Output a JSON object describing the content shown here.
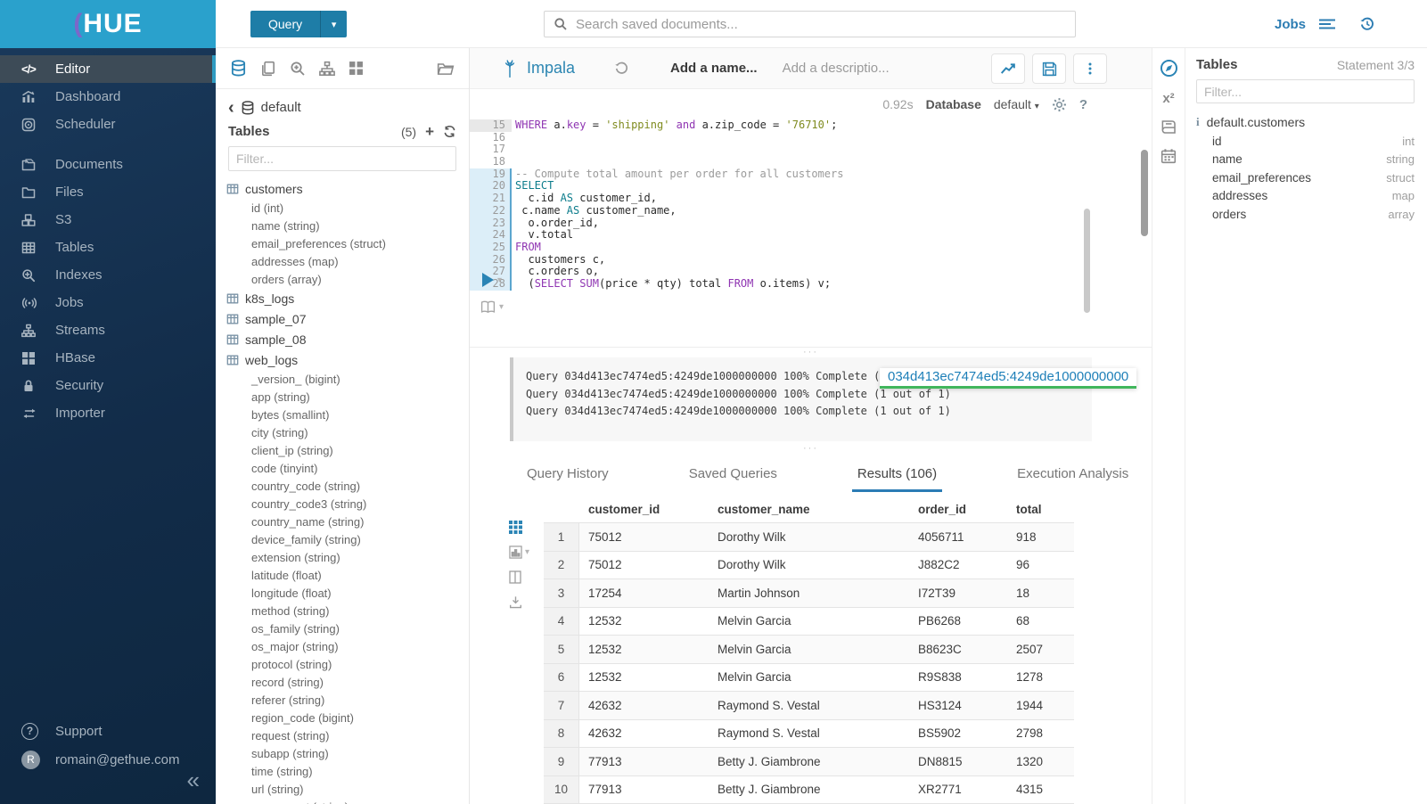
{
  "brand": {
    "name": "HUE"
  },
  "topbar": {
    "query_button": "Query",
    "search_placeholder": "Search saved documents...",
    "jobs_label": "Jobs"
  },
  "sidebar": {
    "items": [
      {
        "label": "Editor",
        "icon": "code",
        "active": true
      },
      {
        "label": "Dashboard",
        "icon": "dashboard"
      },
      {
        "label": "Scheduler",
        "icon": "scheduler"
      },
      {
        "label": "Documents",
        "icon": "documents",
        "gap": true
      },
      {
        "label": "Files",
        "icon": "folder"
      },
      {
        "label": "S3",
        "icon": "s3"
      },
      {
        "label": "Tables",
        "icon": "tables"
      },
      {
        "label": "Indexes",
        "icon": "search-plus"
      },
      {
        "label": "Jobs",
        "icon": "broadcast"
      },
      {
        "label": "Streams",
        "icon": "sitemap"
      },
      {
        "label": "HBase",
        "icon": "blocks"
      },
      {
        "label": "Security",
        "icon": "lock"
      },
      {
        "label": "Importer",
        "icon": "transfer"
      }
    ],
    "footer": [
      {
        "label": "Support",
        "icon": "help"
      },
      {
        "label": "romain@gethue.com",
        "icon": "avatar",
        "avatar_letter": "R"
      }
    ],
    "collapse_glyph": "«"
  },
  "left_assist": {
    "breadcrumb_back": "‹",
    "database": "default",
    "tables_title": "Tables",
    "tables_count": "(5)",
    "plus_glyph": "+",
    "filter_placeholder": "Filter...",
    "tables": [
      {
        "name": "customers",
        "columns": [
          "id (int)",
          "name (string)",
          "email_preferences (struct)",
          "addresses (map)",
          "orders (array)"
        ]
      },
      {
        "name": "k8s_logs",
        "columns": []
      },
      {
        "name": "sample_07",
        "columns": []
      },
      {
        "name": "sample_08",
        "columns": []
      },
      {
        "name": "web_logs",
        "columns": [
          "_version_ (bigint)",
          "app (string)",
          "bytes (smallint)",
          "city (string)",
          "client_ip (string)",
          "code (tinyint)",
          "country_code (string)",
          "country_code3 (string)",
          "country_name (string)",
          "device_family (string)",
          "extension (string)",
          "latitude (float)",
          "longitude (float)",
          "method (string)",
          "os_family (string)",
          "os_major (string)",
          "protocol (string)",
          "record (string)",
          "referer (string)",
          "region_code (bigint)",
          "request (string)",
          "subapp (string)",
          "time (string)",
          "url (string)",
          "user_agent (string)"
        ]
      }
    ]
  },
  "editor": {
    "engine": "Impala",
    "name_placeholder": "Add a name...",
    "description_placeholder": "Add a descriptio...",
    "execution_time": "0.92s",
    "database_label": "Database",
    "database_value": "default",
    "caret_glyph": "▾",
    "code_lines": [
      {
        "n": 15,
        "hl": "gray",
        "tokens": [
          [
            "kw",
            "WHERE"
          ],
          [
            "t",
            " a."
          ],
          [
            "kw",
            "key"
          ],
          [
            "t",
            " = "
          ],
          [
            "s",
            "'shipping'"
          ],
          [
            "t",
            " "
          ],
          [
            "kw",
            "and"
          ],
          [
            "t",
            " a.zip_code = "
          ],
          [
            "s",
            "'76710'"
          ],
          [
            "t",
            ";"
          ]
        ]
      },
      {
        "n": 16,
        "hl": null,
        "tokens": []
      },
      {
        "n": 17,
        "hl": null,
        "tokens": []
      },
      {
        "n": 18,
        "hl": null,
        "tokens": []
      },
      {
        "n": 19,
        "hl": "blue",
        "tokens": [
          [
            "c",
            "-- Compute total amount per order for all customers"
          ]
        ]
      },
      {
        "n": 20,
        "hl": "blue",
        "tokens": [
          [
            "kw2",
            "SELECT"
          ]
        ]
      },
      {
        "n": 21,
        "hl": "blue",
        "tokens": [
          [
            "t",
            "  c.id "
          ],
          [
            "kw2",
            "AS"
          ],
          [
            "t",
            " customer_id,"
          ]
        ]
      },
      {
        "n": 22,
        "hl": "blue",
        "tokens": [
          [
            "t",
            " c.name "
          ],
          [
            "kw2",
            "AS"
          ],
          [
            "t",
            " customer_name,"
          ]
        ]
      },
      {
        "n": 23,
        "hl": "blue",
        "tokens": [
          [
            "t",
            "  o.order_id,"
          ]
        ]
      },
      {
        "n": 24,
        "hl": "blue",
        "tokens": [
          [
            "t",
            "  v.total"
          ]
        ]
      },
      {
        "n": 25,
        "hl": "blue",
        "tokens": [
          [
            "kw",
            "FROM"
          ]
        ]
      },
      {
        "n": 26,
        "hl": "blue",
        "tokens": [
          [
            "t",
            "  customers c,"
          ]
        ]
      },
      {
        "n": 27,
        "hl": "blue",
        "tokens": [
          [
            "t",
            "  c.orders o,"
          ]
        ]
      },
      {
        "n": 28,
        "hl": "blue",
        "tokens": [
          [
            "t",
            "  ("
          ],
          [
            "kw",
            "SELECT"
          ],
          [
            "t",
            " "
          ],
          [
            "kw",
            "SUM"
          ],
          [
            "t",
            "(price * qty) total "
          ],
          [
            "kw",
            "FROM"
          ],
          [
            "t",
            " o.items) v;"
          ]
        ]
      }
    ]
  },
  "log": {
    "lines": [
      "Query 034d413ec7474ed5:4249de1000000000 100% Complete (1 out of 1)",
      "Query 034d413ec7474ed5:4249de1000000000 100% Complete (1 out of 1)",
      "Query 034d413ec7474ed5:4249de1000000000 100% Complete (1 out of 1)"
    ],
    "query_id_tooltip": "034d413ec7474ed5:4249de1000000000",
    "handle_glyph": "···"
  },
  "tabs": [
    {
      "label": "Query History",
      "active": false
    },
    {
      "label": "Saved Queries",
      "active": false
    },
    {
      "label": "Results (106)",
      "active": true
    },
    {
      "label": "Execution Analysis",
      "active": false
    }
  ],
  "results": {
    "columns": [
      "customer_id",
      "customer_name",
      "order_id",
      "total"
    ],
    "rows": [
      [
        "1",
        "75012",
        "Dorothy Wilk",
        "4056711",
        "918"
      ],
      [
        "2",
        "75012",
        "Dorothy Wilk",
        "J882C2",
        "96"
      ],
      [
        "3",
        "17254",
        "Martin Johnson",
        "I72T39",
        "18"
      ],
      [
        "4",
        "12532",
        "Melvin Garcia",
        "PB6268",
        "68"
      ],
      [
        "5",
        "12532",
        "Melvin Garcia",
        "B8623C",
        "2507"
      ],
      [
        "6",
        "12532",
        "Melvin Garcia",
        "R9S838",
        "1278"
      ],
      [
        "7",
        "42632",
        "Raymond S. Vestal",
        "HS3124",
        "1944"
      ],
      [
        "8",
        "42632",
        "Raymond S. Vestal",
        "BS5902",
        "2798"
      ],
      [
        "9",
        "77913",
        "Betty J. Giambrone",
        "DN8815",
        "1320"
      ],
      [
        "10",
        "77913",
        "Betty J. Giambrone",
        "XR2771",
        "4315"
      ]
    ]
  },
  "right_rail": {
    "superscript_label": "x²"
  },
  "right_panel": {
    "title": "Tables",
    "statement": "Statement 3/3",
    "filter_placeholder": "Filter...",
    "table_name": "default.customers",
    "columns": [
      {
        "name": "id",
        "type": "int"
      },
      {
        "name": "name",
        "type": "string"
      },
      {
        "name": "email_preferences",
        "type": "struct"
      },
      {
        "name": "addresses",
        "type": "map"
      },
      {
        "name": "orders",
        "type": "array"
      }
    ]
  },
  "colors": {
    "brand_bar": "#2aa1cc",
    "primary_button": "#1e7da7",
    "link_blue": "#2d7db3",
    "icon_blue": "#2a84b5",
    "active_tab_underline": "#2b7cb5",
    "keyword": "#8f35b2",
    "keyword_alt": "#0e7d8c",
    "string": "#7f8b1f",
    "comment": "#9b9b9b",
    "tooltip_underline": "#41b65c"
  }
}
